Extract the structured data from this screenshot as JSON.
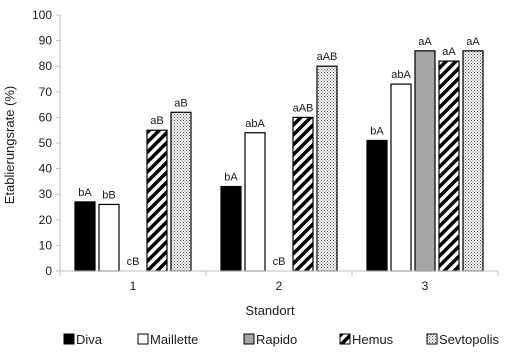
{
  "chart_data": {
    "type": "bar",
    "xlabel": "Standort",
    "ylabel": "Etablierungsrate (%)",
    "ylim": [
      0,
      100
    ],
    "yticks": [
      0,
      10,
      20,
      30,
      40,
      50,
      60,
      70,
      80,
      90,
      100
    ],
    "grid": false,
    "legend_position": "bottom",
    "categories": [
      "1",
      "2",
      "3"
    ],
    "series": [
      {
        "name": "Diva",
        "pattern": "solid-black",
        "values": [
          27,
          33,
          51
        ],
        "labels": [
          "bA",
          "bA",
          "bA"
        ]
      },
      {
        "name": "Maillette",
        "pattern": "white",
        "values": [
          26,
          54,
          73
        ],
        "labels": [
          "bB",
          "abA",
          "abA"
        ]
      },
      {
        "name": "Rapido",
        "pattern": "grey",
        "values": [
          0,
          0,
          86
        ],
        "labels": [
          "cB",
          "cB",
          "aA"
        ]
      },
      {
        "name": "Hemus",
        "pattern": "diagonal-stripes",
        "values": [
          55,
          60,
          82
        ],
        "labels": [
          "aB",
          "aAB",
          "aA"
        ]
      },
      {
        "name": "Sevtopolis",
        "pattern": "dots",
        "values": [
          62,
          80,
          86
        ],
        "labels": [
          "aB",
          "aAB",
          "aA"
        ]
      }
    ],
    "colors": {
      "axis": "#bfbfbf",
      "text": "#1a1a1a",
      "black": "#000000",
      "grey": "#a6a6a6",
      "white": "#ffffff"
    }
  }
}
